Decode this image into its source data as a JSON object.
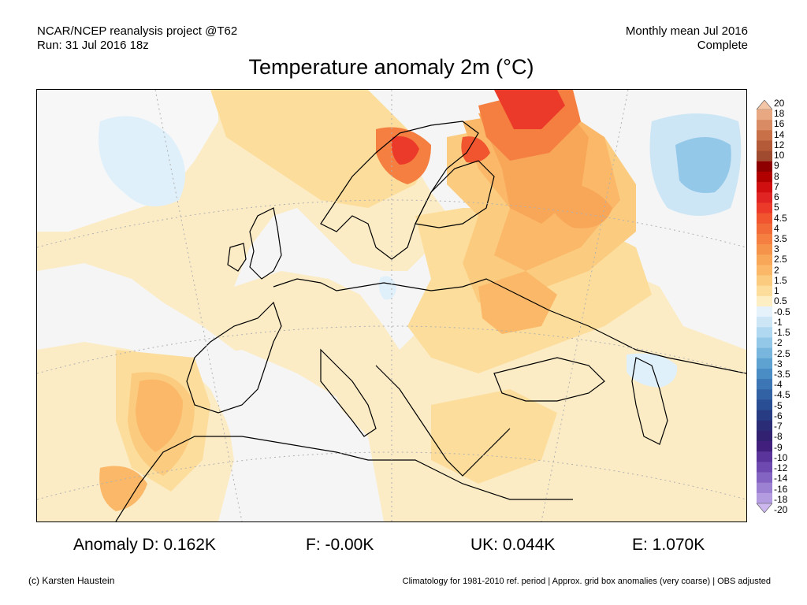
{
  "header": {
    "left_line1": "NCAR/NCEP reanalysis project @T62",
    "left_line2": "Run: 31 Jul 2016 18z",
    "right_line1": "Monthly mean Jul 2016",
    "right_line2": "Complete"
  },
  "title": "Temperature anomaly 2m (°C)",
  "legend": {
    "labels": [
      "20",
      "18",
      "16",
      "14",
      "12",
      "10",
      "9",
      "8",
      "7",
      "6",
      "5",
      "4.5",
      "4",
      "3.5",
      "3",
      "2.5",
      "2",
      "1.5",
      "1",
      "0.5",
      "-0.5",
      "-1",
      "-1.5",
      "-2",
      "-2.5",
      "-3",
      "-3.5",
      "-4",
      "-4.5",
      "-5",
      "-6",
      "-7",
      "-8",
      "-9",
      "-10",
      "-12",
      "-14",
      "-16",
      "-18",
      "-20"
    ],
    "colors": [
      "#f4c6a8",
      "#e8a982",
      "#d98c63",
      "#c87048",
      "#b55a38",
      "#a04a30",
      "#8e0000",
      "#b00000",
      "#d01010",
      "#e02424",
      "#ec3a2a",
      "#f05530",
      "#f26a38",
      "#f47f40",
      "#f6934a",
      "#f8a658",
      "#fab868",
      "#fbcc80",
      "#fcdd9c",
      "#fdeec4",
      "#e6f2fb",
      "#cde6f6",
      "#b0d8f0",
      "#94c8e8",
      "#78b6de",
      "#5ea2d2",
      "#4a8cc4",
      "#3c76b4",
      "#3262a4",
      "#2a4e94",
      "#283c84",
      "#2a2c76",
      "#322070",
      "#40207c",
      "#5a349a",
      "#6e4ab0",
      "#8464c2",
      "#9c80d2",
      "#b49ce0",
      "#ccb8ee"
    ]
  },
  "stats": {
    "anomaly_d": "Anomaly D: 0.162K",
    "f": "F: -0.00K",
    "uk": "UK: 0.044K",
    "e": "E: 1.070K"
  },
  "footer": {
    "copyright": "(c) Karsten Haustein",
    "note": "Climatology for 1981-2010 ref. period | Approx. grid box anomalies (very coarse) | OBS adjusted"
  }
}
